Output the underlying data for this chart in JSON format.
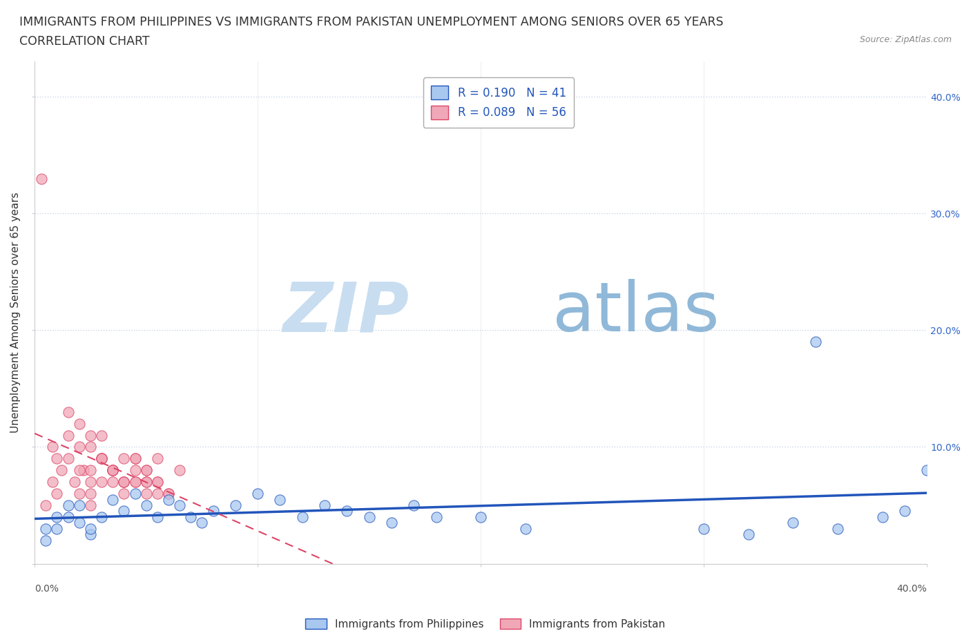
{
  "title_line1": "IMMIGRANTS FROM PHILIPPINES VS IMMIGRANTS FROM PAKISTAN UNEMPLOYMENT AMONG SENIORS OVER 65 YEARS",
  "title_line2": "CORRELATION CHART",
  "source_text": "Source: ZipAtlas.com",
  "ylabel": "Unemployment Among Seniors over 65 years",
  "xlim": [
    0.0,
    0.4
  ],
  "ylim": [
    0.0,
    0.43
  ],
  "yticks": [
    0.0,
    0.1,
    0.2,
    0.3,
    0.4
  ],
  "ytick_labels": [
    "",
    "10.0%",
    "20.0%",
    "30.0%",
    "40.0%"
  ],
  "legend_philippines": "R = 0.190   N = 41",
  "legend_pakistan": "R = 0.089   N = 56",
  "color_philippines": "#a8c8f0",
  "color_pakistan": "#f0a8b8",
  "line_color_philippines": "#2255bb",
  "line_color_pakistan": "#dd4466",
  "watermark_zip": "ZIP",
  "watermark_atlas": "atlas",
  "watermark_color_zip": "#c8ddf0",
  "watermark_color_atlas": "#90b8d8",
  "philippines_x": [
    0.005,
    0.01,
    0.015,
    0.02,
    0.025,
    0.005,
    0.01,
    0.015,
    0.02,
    0.025,
    0.03,
    0.035,
    0.04,
    0.045,
    0.05,
    0.055,
    0.06,
    0.065,
    0.07,
    0.075,
    0.08,
    0.09,
    0.1,
    0.11,
    0.12,
    0.13,
    0.14,
    0.15,
    0.16,
    0.17,
    0.18,
    0.2,
    0.22,
    0.3,
    0.32,
    0.34,
    0.36,
    0.38,
    0.39,
    0.4,
    0.35
  ],
  "philippines_y": [
    0.03,
    0.04,
    0.05,
    0.035,
    0.025,
    0.02,
    0.03,
    0.04,
    0.05,
    0.03,
    0.04,
    0.055,
    0.045,
    0.06,
    0.05,
    0.04,
    0.055,
    0.05,
    0.04,
    0.035,
    0.045,
    0.05,
    0.06,
    0.055,
    0.04,
    0.05,
    0.045,
    0.04,
    0.035,
    0.05,
    0.04,
    0.04,
    0.03,
    0.03,
    0.025,
    0.035,
    0.03,
    0.04,
    0.045,
    0.08,
    0.19
  ],
  "pakistan_x": [
    0.005,
    0.008,
    0.01,
    0.012,
    0.015,
    0.018,
    0.02,
    0.022,
    0.025,
    0.008,
    0.01,
    0.015,
    0.02,
    0.025,
    0.03,
    0.015,
    0.02,
    0.025,
    0.03,
    0.035,
    0.02,
    0.025,
    0.03,
    0.035,
    0.04,
    0.025,
    0.03,
    0.035,
    0.025,
    0.03,
    0.035,
    0.04,
    0.045,
    0.03,
    0.035,
    0.04,
    0.045,
    0.05,
    0.035,
    0.04,
    0.045,
    0.05,
    0.055,
    0.04,
    0.045,
    0.05,
    0.055,
    0.06,
    0.045,
    0.05,
    0.055,
    0.06,
    0.065,
    0.05,
    0.055,
    0.003
  ],
  "pakistan_y": [
    0.05,
    0.07,
    0.06,
    0.08,
    0.09,
    0.07,
    0.06,
    0.08,
    0.05,
    0.1,
    0.09,
    0.11,
    0.08,
    0.07,
    0.09,
    0.13,
    0.1,
    0.08,
    0.09,
    0.07,
    0.12,
    0.11,
    0.09,
    0.08,
    0.07,
    0.1,
    0.09,
    0.08,
    0.06,
    0.07,
    0.08,
    0.09,
    0.07,
    0.11,
    0.08,
    0.07,
    0.09,
    0.06,
    0.08,
    0.07,
    0.09,
    0.08,
    0.07,
    0.06,
    0.08,
    0.07,
    0.09,
    0.06,
    0.07,
    0.08,
    0.07,
    0.06,
    0.08,
    0.07,
    0.06,
    0.33
  ],
  "background_color": "#ffffff",
  "grid_color": "#c8d4e8",
  "title_fontsize": 12.5,
  "axis_label_fontsize": 11,
  "tick_fontsize": 10,
  "legend_fontsize": 12
}
